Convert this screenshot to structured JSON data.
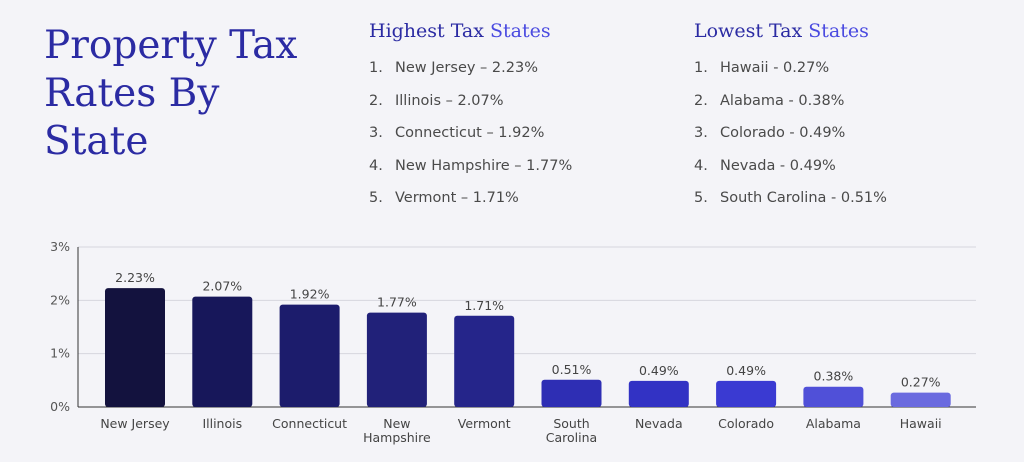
{
  "title_lines": [
    "Property Tax",
    "Rates By",
    "State"
  ],
  "highest": {
    "heading_main": "Highest Tax",
    "heading_accent": "States",
    "items": [
      {
        "num": "1.",
        "text": "New Jersey – 2.23%"
      },
      {
        "num": "2.",
        "text": "Illinois – 2.07%"
      },
      {
        "num": "3.",
        "text": "Connecticut – 1.92%"
      },
      {
        "num": "4.",
        "text": "New Hampshire – 1.77%"
      },
      {
        "num": "5.",
        "text": "Vermont – 1.71%"
      }
    ]
  },
  "lowest": {
    "heading_main": "Lowest Tax",
    "heading_accent": "States",
    "items": [
      {
        "num": "1.",
        "text": "Hawaii - 0.27%"
      },
      {
        "num": "2.",
        "text": "Alabama - 0.38%"
      },
      {
        "num": "3.",
        "text": "Colorado - 0.49%"
      },
      {
        "num": "4.",
        "text": "Nevada - 0.49%"
      },
      {
        "num": "5.",
        "text": "South Carolina - 0.51%"
      }
    ]
  },
  "chart_data": {
    "type": "bar",
    "categories": [
      "New Jersey",
      "Illinois",
      "Connecticut",
      "New Hampshire",
      "Vermont",
      "South Carolina",
      "Nevada",
      "Colorado",
      "Alabama",
      "Hawaii"
    ],
    "category_lines": [
      [
        "New Jersey"
      ],
      [
        "Illinois"
      ],
      [
        "Connecticut"
      ],
      [
        "New",
        "Hampshire"
      ],
      [
        "Vermont"
      ],
      [
        "South",
        "Carolina"
      ],
      [
        "Nevada"
      ],
      [
        "Colorado"
      ],
      [
        "Alabama"
      ],
      [
        "Hawaii"
      ]
    ],
    "values": [
      2.23,
      2.07,
      1.92,
      1.77,
      1.71,
      0.51,
      0.49,
      0.49,
      0.38,
      0.27
    ],
    "value_labels": [
      "2.23%",
      "2.07%",
      "1.92%",
      "1.77%",
      "1.71%",
      "0.51%",
      "0.49%",
      "0.49%",
      "0.38%",
      "0.27%"
    ],
    "bar_colors": [
      "#13123e",
      "#17175a",
      "#1c1c6c",
      "#212179",
      "#25258a",
      "#2e2eb4",
      "#3232c4",
      "#3a3ad2",
      "#5050d8",
      "#6a6adf"
    ],
    "yticks": [
      0,
      1,
      2,
      3
    ],
    "ytick_labels": [
      "0%",
      "1%",
      "2%",
      "3%"
    ],
    "ylim": [
      0,
      3
    ],
    "grid": true,
    "xlabel": "",
    "ylabel": ""
  }
}
